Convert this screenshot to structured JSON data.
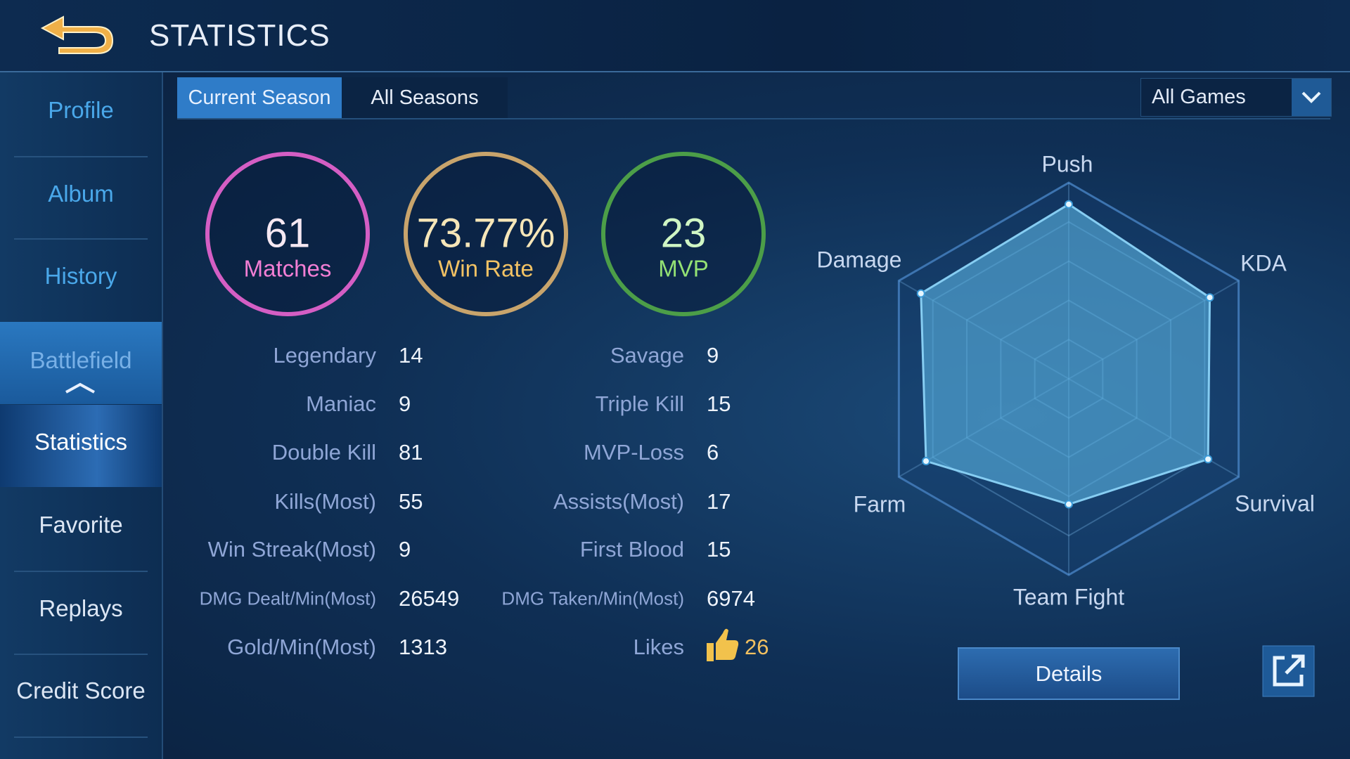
{
  "header": {
    "title": "STATISTICS"
  },
  "sidebar": {
    "items": [
      "Profile",
      "Album",
      "History",
      "Battlefield",
      "Statistics",
      "Favorite",
      "Replays",
      "Credit Score"
    ]
  },
  "tabs": [
    "Current Season",
    "All Seasons"
  ],
  "filter": "All Games",
  "summary": [
    {
      "value": "61",
      "label": "Matches"
    },
    {
      "value": "73.77%",
      "label": "Win Rate"
    },
    {
      "value": "23",
      "label": "MVP"
    }
  ],
  "stats": {
    "left": [
      [
        "Legendary",
        14
      ],
      [
        "Maniac",
        9
      ],
      [
        "Double Kill",
        81
      ],
      [
        "Kills(Most)",
        55
      ],
      [
        "Win Streak(Most)",
        9
      ],
      [
        "DMG Dealt/Min(Most)",
        26549
      ],
      [
        "Gold/Min(Most)",
        1313
      ]
    ],
    "right": [
      [
        "Savage",
        9
      ],
      [
        "Triple Kill",
        15
      ],
      [
        "MVP-Loss",
        6
      ],
      [
        "Assists(Most)",
        17
      ],
      [
        "First Blood",
        15
      ],
      [
        "DMG Taken/Min(Most)",
        6974
      ],
      [
        "Likes",
        26
      ]
    ]
  },
  "radar": {
    "type": "radar",
    "axes": [
      "Push",
      "KDA",
      "Survival",
      "Team Fight",
      "Farm",
      "Damage"
    ],
    "values": [
      89,
      83,
      82,
      64,
      84,
      87
    ],
    "rlim": [
      0,
      100
    ]
  },
  "button": "Details"
}
